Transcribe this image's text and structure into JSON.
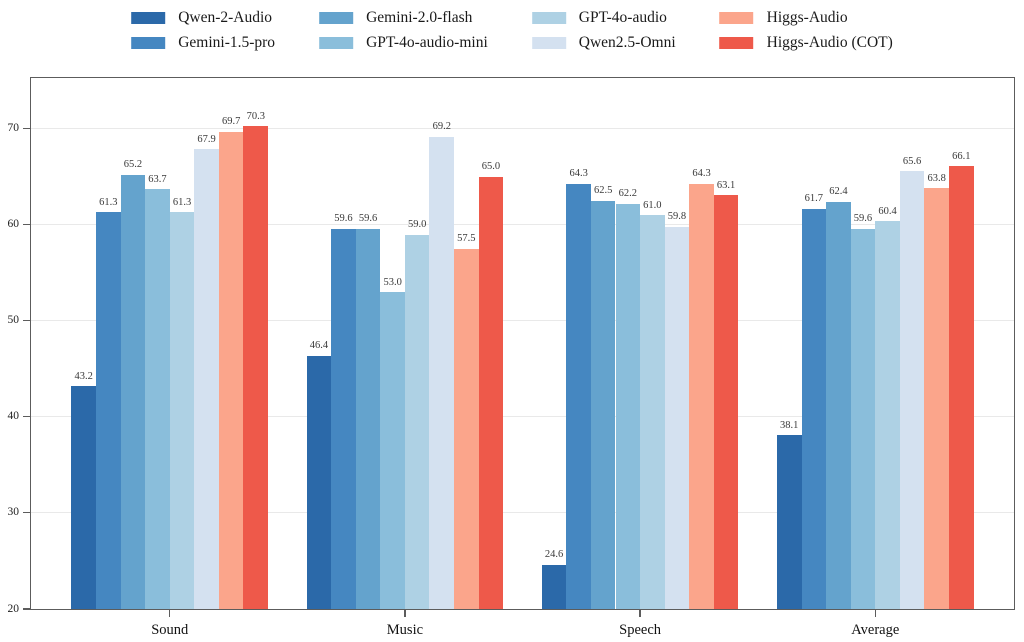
{
  "chart_data": {
    "type": "bar",
    "categories": [
      "Sound",
      "Music",
      "Speech",
      "Average"
    ],
    "series": [
      {
        "name": "Qwen-2-Audio",
        "color": "#2b69a9",
        "values": [
          43.2,
          46.4,
          24.6,
          38.1
        ]
      },
      {
        "name": "Gemini-1.5-pro",
        "color": "#4587c1",
        "values": [
          61.3,
          59.6,
          64.3,
          61.7
        ]
      },
      {
        "name": "Gemini-2.0-flash",
        "color": "#64a3cd",
        "values": [
          65.2,
          59.6,
          62.5,
          62.4
        ]
      },
      {
        "name": "GPT-4o-audio-mini",
        "color": "#8abedb",
        "values": [
          63.7,
          53.0,
          62.2,
          59.6
        ]
      },
      {
        "name": "GPT-4o-audio",
        "color": "#aed1e4",
        "values": [
          61.3,
          59.0,
          61.0,
          60.4
        ]
      },
      {
        "name": "Qwen2.5-Omni",
        "color": "#d4e1f0",
        "values": [
          67.9,
          69.2,
          59.8,
          65.6
        ]
      },
      {
        "name": "Higgs-Audio",
        "color": "#fba58b",
        "values": [
          69.7,
          57.5,
          64.3,
          63.8
        ]
      },
      {
        "name": "Higgs-Audio (COT)",
        "color": "#ee594a",
        "values": [
          70.3,
          65.0,
          63.1,
          66.1
        ]
      }
    ],
    "title": "",
    "xlabel": "",
    "ylabel": "",
    "ylim": [
      20,
      75.3
    ],
    "yticks": [
      20,
      30,
      40,
      50,
      60,
      70
    ],
    "grid": true,
    "legend_position": "top",
    "value_labels_decimals": 1,
    "colors": {
      "grid": "#e9e9e9",
      "spine": "#5c5c5c",
      "value_label": "#3a3a3a"
    }
  }
}
